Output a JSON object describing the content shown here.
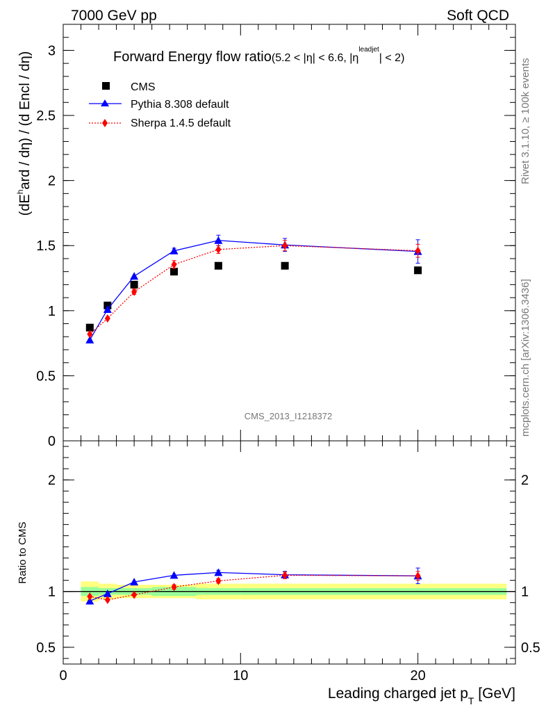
{
  "header": {
    "beam": "7000 GeV pp",
    "process": "Soft QCD"
  },
  "side_labels": {
    "rivet": "Rivet 3.1.10, ≥ 100k events",
    "mcplots": "mcplots.cern.ch [arXiv:1306.3436]"
  },
  "colors": {
    "data": "#000000",
    "pythia": "#0000ff",
    "sherpa": "#ff0000",
    "band_inner": "#99ff99",
    "band_outer": "#ffff80"
  },
  "chart_data": [
    {
      "type": "line",
      "title_main": "Forward Energy flow ratio",
      "title_sub": "(5.2 < |η| < 6.6, |η",
      "title_sup": "leadjet",
      "title_end": "| < 2)",
      "analysis_id": "CMS_2013_I1218372",
      "ylabel_parts": [
        "(dE",
        "h",
        "ard / dη) / (d Encl / dη)"
      ],
      "ylim": [
        0,
        3.2
      ],
      "xlim": [
        0,
        25.5
      ],
      "yticks": [
        {
          "v": 0,
          "label": "0"
        },
        {
          "v": 0.5,
          "label": "0.5"
        },
        {
          "v": 1,
          "label": "1"
        },
        {
          "v": 1.5,
          "label": "1.5"
        },
        {
          "v": 2,
          "label": "2"
        },
        {
          "v": 2.5,
          "label": "2.5"
        },
        {
          "v": 3,
          "label": "3"
        }
      ],
      "legend": [
        {
          "name": "CMS",
          "key": "data"
        },
        {
          "name": "Pythia 8.308 default",
          "key": "pythia"
        },
        {
          "name": "Sherpa 1.4.5 default",
          "key": "sherpa"
        }
      ],
      "series": [
        {
          "name": "CMS",
          "key": "data",
          "marker": "square",
          "x": [
            1.5,
            2.5,
            4,
            6.25,
            8.75,
            12.5,
            20
          ],
          "y": [
            0.87,
            1.04,
            1.2,
            1.3,
            1.345,
            1.345,
            1.31
          ],
          "err": [
            0,
            0,
            0,
            0,
            0,
            0,
            0
          ]
        },
        {
          "name": "Pythia 8.308 default",
          "key": "pythia",
          "marker": "triangle",
          "x": [
            1.5,
            2.5,
            4,
            6.25,
            8.75,
            12.5,
            20
          ],
          "y": [
            0.775,
            1.01,
            1.265,
            1.46,
            1.54,
            1.505,
            1.455
          ],
          "err": [
            0.01,
            0.01,
            0.01,
            0.02,
            0.04,
            0.05,
            0.09
          ]
        },
        {
          "name": "Sherpa 1.4.5 default",
          "key": "sherpa",
          "marker": "diamond",
          "x": [
            1.5,
            2.5,
            4,
            6.25,
            8.75,
            12.5,
            20
          ],
          "y": [
            0.82,
            0.94,
            1.145,
            1.355,
            1.47,
            1.5,
            1.46
          ],
          "err": [
            0.01,
            0.01,
            0.02,
            0.03,
            0.03,
            0.04,
            0.05
          ]
        }
      ]
    },
    {
      "type": "line",
      "title": "Ratio to CMS",
      "xlabel": "Leading charged jet p",
      "xlabel_sub": "T",
      "xlabel_unit": " [GeV]",
      "ylim": [
        0.35,
        2.35
      ],
      "xlim": [
        0,
        25.5
      ],
      "xticks": [
        {
          "v": 0,
          "label": "0"
        },
        {
          "v": 10,
          "label": "10"
        },
        {
          "v": 20,
          "label": "20"
        }
      ],
      "yticks": [
        {
          "v": 0.5,
          "label": "0.5"
        },
        {
          "v": 1,
          "label": "1"
        },
        {
          "v": 2,
          "label": "2"
        }
      ],
      "band_bins": [
        {
          "x0": 1,
          "x1": 2,
          "inner": 0.04,
          "outer": 0.09
        },
        {
          "x0": 2,
          "x1": 3,
          "inner": 0.03,
          "outer": 0.07
        },
        {
          "x0": 3,
          "x1": 5,
          "inner": 0.03,
          "outer": 0.06
        },
        {
          "x0": 5,
          "x1": 7.5,
          "inner": 0.04,
          "outer": 0.06
        },
        {
          "x0": 7.5,
          "x1": 10,
          "inner": 0.03,
          "outer": 0.07
        },
        {
          "x0": 10,
          "x1": 15,
          "inner": 0.03,
          "outer": 0.07
        },
        {
          "x0": 15,
          "x1": 25,
          "inner": 0.03,
          "outer": 0.07
        }
      ],
      "series": [
        {
          "name": "Pythia 8.308 default",
          "key": "pythia",
          "marker": "triangle",
          "x": [
            1.5,
            2.5,
            4,
            6.25,
            8.75,
            12.5,
            20
          ],
          "y": [
            0.915,
            0.98,
            1.085,
            1.145,
            1.17,
            1.15,
            1.14
          ],
          "err": [
            0.01,
            0.01,
            0.01,
            0.01,
            0.02,
            0.03,
            0.07
          ]
        },
        {
          "name": "Sherpa 1.4.5 default",
          "key": "sherpa",
          "marker": "diamond",
          "x": [
            1.5,
            2.5,
            4,
            6.25,
            8.75,
            12.5,
            20
          ],
          "y": [
            0.955,
            0.925,
            0.97,
            1.04,
            1.095,
            1.145,
            1.14
          ],
          "err": [
            0.01,
            0.01,
            0.01,
            0.02,
            0.02,
            0.03,
            0.04
          ]
        }
      ]
    }
  ]
}
